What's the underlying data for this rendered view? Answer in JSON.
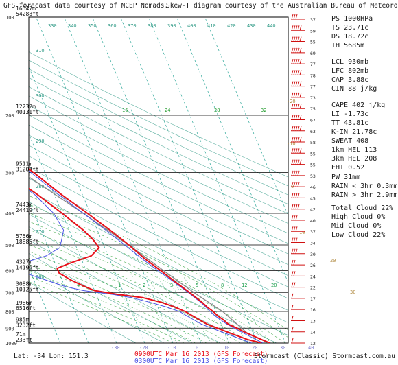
{
  "header": {
    "left": "GFS forecast data courtesy of NCEP Nomads.",
    "right": "Skew-T diagram courtesy of the Australian Bureau of Meteorology"
  },
  "colors": {
    "red_profile": "#e8101a",
    "blue_profile": "#4a52e6",
    "isotherm": "#2fa89a",
    "dry_adiabat": "#2f9a86",
    "moist_adiabat": "#1f9a2a",
    "mixing_ratio": "#1fa050",
    "parcel": "#888888",
    "wind": "#d01010",
    "axis_text": "#7c7cd0",
    "frame": "#000000"
  },
  "chart_data": {
    "type": "line",
    "title": "",
    "xlabel": "",
    "ylabel": "",
    "temperature_axis_bottom": [
      "-30",
      "-20",
      "-10",
      "0",
      "10",
      "20",
      "30",
      "40"
    ],
    "temperature_axis_top": [
      "-100",
      "-90",
      "-80",
      "-70",
      "-60",
      "-50",
      "-40"
    ],
    "pressure_levels": [
      "100",
      "200",
      "300",
      "400",
      "500",
      "600",
      "700",
      "800",
      "900",
      "1000"
    ],
    "pressure_axis_labels": [
      {
        "p": 100,
        "alt_m": "16547m",
        "alt_ft": "54288ft"
      },
      {
        "p": 200,
        "alt_m": "12232m",
        "alt_ft": "40131ft"
      },
      {
        "p": 300,
        "alt_m": "9511m",
        "alt_ft": "31204ft"
      },
      {
        "p": 400,
        "alt_m": "7443m",
        "alt_ft": "24419ft"
      },
      {
        "p": 500,
        "alt_m": "5756m",
        "alt_ft": "18885ft"
      },
      {
        "p": 600,
        "alt_m": "4327m",
        "alt_ft": "14196ft"
      },
      {
        "p": 700,
        "alt_m": "3088m",
        "alt_ft": "10125ft"
      },
      {
        "p": 800,
        "alt_m": "1986m",
        "alt_ft": "6516ft"
      },
      {
        "p": 900,
        "alt_m": "985m",
        "alt_ft": "3232ft"
      },
      {
        "p": 1000,
        "alt_m": "71m",
        "alt_ft": "233ft"
      }
    ],
    "dry_adiabat_labels": [
      "330",
      "340",
      "350",
      "360",
      "370",
      "380",
      "390",
      "400",
      "410",
      "420",
      "430",
      "440",
      "310",
      "300",
      "290",
      "280",
      "270",
      "260"
    ],
    "mixing_ratio_labels": [
      "4",
      "1",
      "2",
      "3",
      "5",
      "8",
      "12",
      "20"
    ],
    "moist_labels": [
      "16",
      "24",
      "28",
      "32",
      "-20",
      "-10",
      "0",
      "10",
      "20",
      "30",
      "40"
    ],
    "wind_speeds": [
      "37",
      "59",
      "55",
      "69",
      "77",
      "78",
      "77",
      "73",
      "75",
      "67",
      "63",
      "58",
      "55",
      "55",
      "53",
      "46",
      "45",
      "42",
      "40",
      "37",
      "34",
      "30",
      "26",
      "24",
      "22",
      "17",
      "16",
      "13",
      "14",
      "12"
    ],
    "series": [
      {
        "name": "0900UTC Mar 16 2013 (GFS Forecast)",
        "temperature": [
          [
            1000,
            24.5
          ],
          [
            975,
            22
          ],
          [
            950,
            19.5
          ],
          [
            925,
            17
          ],
          [
            900,
            15
          ],
          [
            875,
            12.5
          ],
          [
            850,
            11.5
          ],
          [
            825,
            10
          ],
          [
            800,
            9
          ],
          [
            775,
            7.5
          ],
          [
            750,
            6.5
          ],
          [
            725,
            5
          ],
          [
            700,
            3.5
          ],
          [
            650,
            0
          ],
          [
            600,
            -3.5
          ],
          [
            550,
            -7.5
          ],
          [
            500,
            -11
          ],
          [
            450,
            -15.5
          ],
          [
            400,
            -21
          ],
          [
            350,
            -27.5
          ],
          [
            300,
            -34
          ],
          [
            275,
            -38.5
          ],
          [
            250,
            -43
          ],
          [
            225,
            -48.5
          ],
          [
            200,
            -54
          ],
          [
            175,
            -57.5
          ],
          [
            150,
            -60
          ],
          [
            125,
            -62
          ],
          [
            100,
            -64
          ]
        ],
        "dewpoint": [
          [
            1000,
            21.5
          ],
          [
            975,
            17
          ],
          [
            950,
            14
          ],
          [
            925,
            11
          ],
          [
            900,
            8
          ],
          [
            875,
            5
          ],
          [
            850,
            3
          ],
          [
            825,
            1
          ],
          [
            800,
            -1
          ],
          [
            775,
            -4
          ],
          [
            750,
            -8
          ],
          [
            725,
            -14
          ],
          [
            710,
            -22
          ],
          [
            690,
            -30
          ],
          [
            670,
            -33
          ],
          [
            640,
            -37
          ],
          [
            610,
            -40
          ],
          [
            590,
            -40
          ],
          [
            570,
            -35
          ],
          [
            540,
            -26
          ],
          [
            510,
            -22
          ],
          [
            480,
            -23
          ],
          [
            450,
            -25
          ],
          [
            400,
            -30
          ],
          [
            350,
            -36
          ],
          [
            300,
            -44
          ],
          [
            275,
            -47
          ],
          [
            250,
            -52
          ],
          [
            225,
            -58
          ],
          [
            200,
            -63
          ],
          [
            175,
            -66
          ],
          [
            150,
            -68
          ],
          [
            125,
            -70
          ],
          [
            100,
            -72
          ]
        ]
      },
      {
        "name": "0300UTC Mar 16 2013 (GFS Forecast)",
        "temperature": [
          [
            1000,
            22
          ],
          [
            975,
            20
          ],
          [
            950,
            18
          ],
          [
            925,
            16
          ],
          [
            900,
            14
          ],
          [
            875,
            12
          ],
          [
            850,
            10.5
          ],
          [
            825,
            9
          ],
          [
            800,
            8
          ],
          [
            775,
            7
          ],
          [
            750,
            6
          ],
          [
            725,
            4.5
          ],
          [
            700,
            3
          ],
          [
            650,
            -0.5
          ],
          [
            600,
            -4.5
          ],
          [
            550,
            -8.5
          ],
          [
            500,
            -12.5
          ],
          [
            450,
            -17
          ],
          [
            400,
            -22.5
          ],
          [
            350,
            -28.5
          ],
          [
            300,
            -35
          ],
          [
            275,
            -39.5
          ],
          [
            250,
            -44
          ],
          [
            225,
            -49.5
          ],
          [
            200,
            -55
          ],
          [
            175,
            -58.5
          ],
          [
            150,
            -60.5
          ],
          [
            125,
            -62.5
          ],
          [
            100,
            -65
          ]
        ],
        "dewpoint": [
          [
            1000,
            18
          ],
          [
            975,
            15
          ],
          [
            950,
            12
          ],
          [
            925,
            9
          ],
          [
            900,
            6
          ],
          [
            875,
            3
          ],
          [
            850,
            1
          ],
          [
            825,
            -1
          ],
          [
            800,
            -3
          ],
          [
            775,
            -7
          ],
          [
            750,
            -12
          ],
          [
            725,
            -18
          ],
          [
            710,
            -24
          ],
          [
            690,
            -34
          ],
          [
            670,
            -40
          ],
          [
            640,
            -46
          ],
          [
            610,
            -52
          ],
          [
            590,
            -56
          ],
          [
            570,
            -52
          ],
          [
            540,
            -42
          ],
          [
            510,
            -36
          ],
          [
            480,
            -34
          ],
          [
            450,
            -32
          ],
          [
            400,
            -33
          ],
          [
            350,
            -37
          ],
          [
            300,
            -45
          ],
          [
            275,
            -49
          ],
          [
            250,
            -54
          ],
          [
            225,
            -59
          ],
          [
            200,
            -64
          ],
          [
            175,
            -66
          ],
          [
            150,
            -67
          ],
          [
            125,
            -70
          ],
          [
            100,
            -73
          ]
        ]
      }
    ],
    "parcel": [
      [
        1000,
        24
      ],
      [
        930,
        17.8
      ],
      [
        802,
        12.5
      ],
      [
        700,
        5
      ],
      [
        600,
        -2.5
      ],
      [
        500,
        -11
      ],
      [
        400,
        -22.5
      ],
      [
        300,
        -38
      ],
      [
        250,
        -48
      ],
      [
        200,
        -60
      ],
      [
        150,
        -70
      ],
      [
        120,
        -77
      ]
    ]
  },
  "indices": [
    {
      "label": "PS",
      "value": "1000HPa"
    },
    {
      "label": "TS",
      "value": "23.71c"
    },
    {
      "label": "DS",
      "value": "18.72c"
    },
    {
      "label": "TH",
      "value": "5685m"
    },
    {
      "label": "LCL",
      "value": "930mb"
    },
    {
      "label": "LFC",
      "value": "802mb"
    },
    {
      "label": "CAP",
      "value": "3.88c"
    },
    {
      "label": "CIN",
      "value": "88 j/kg"
    },
    {
      "label": "CAPE",
      "value": "402 j/kg"
    },
    {
      "label": "LI",
      "value": "-1.73c"
    },
    {
      "label": "TT",
      "value": "43.81c"
    },
    {
      "label": "K-IN",
      "value": "21.78c"
    },
    {
      "label": "SWEAT",
      "value": "408"
    },
    {
      "label": "1km HEL",
      "value": "113"
    },
    {
      "label": "3km HEL",
      "value": "208"
    },
    {
      "label": "EHI",
      "value": "0.52"
    },
    {
      "label": "PW",
      "value": "31mm"
    },
    {
      "label": "RAIN < 3hr",
      "value": "0.3mm"
    },
    {
      "label": "RAIN > 3hr",
      "value": "2.9mm"
    },
    {
      "label": "Total Cloud",
      "value": "22%"
    },
    {
      "label": "High Cloud",
      "value": "0%"
    },
    {
      "label": "Mid Cloud",
      "value": "0%"
    },
    {
      "label": "Low Cloud",
      "value": "22%"
    }
  ],
  "footer": {
    "location": "Lat: -34  Lon: 151.3",
    "run_red": "0900UTC Mar 16 2013 (GFS Forecast)",
    "run_blue": "0300UTC Mar 16 2013 (GFS Forecast)",
    "credit": "Stormcast (Classic) Stormcast.com.au"
  }
}
